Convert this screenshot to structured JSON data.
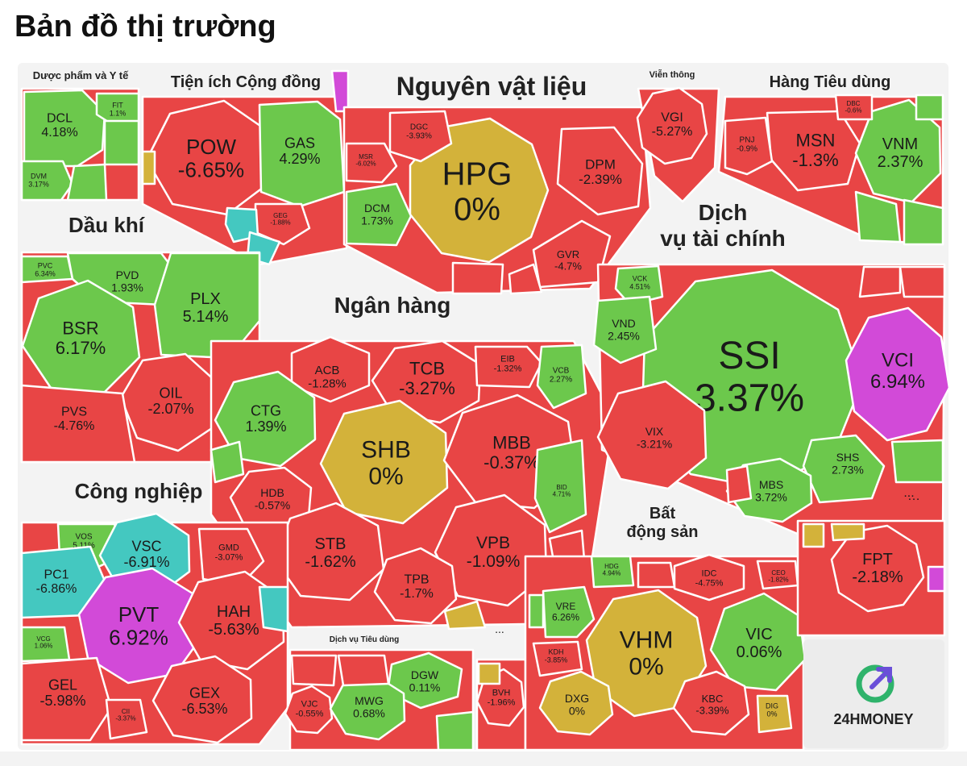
{
  "page_title": "Bản đồ thị trường",
  "logo_text": "24HMONEY",
  "colors": {
    "up": "#6cc84c",
    "down": "#e84545",
    "flat": "#d3b23a",
    "ceiling": "#d24ad8",
    "floor": "#44c8c0",
    "background": "#f3f3f3"
  },
  "chart_data": {
    "type": "heatmap",
    "sectors": [
      {
        "name": "Dược phẩm và Y tế",
        "stocks": [
          {
            "ticker": "DCL",
            "change": "4.18%"
          },
          {
            "ticker": "FIT",
            "change": "1.1%"
          },
          {
            "ticker": "DVM",
            "change": "3.17%"
          }
        ]
      },
      {
        "name": "Tiện ích Cộng đồng",
        "stocks": [
          {
            "ticker": "POW",
            "change": "-6.65%"
          },
          {
            "ticker": "GAS",
            "change": "4.29%"
          },
          {
            "ticker": "GEG",
            "change": "-1.88%"
          }
        ]
      },
      {
        "name": "Nguyên vật liệu",
        "stocks": [
          {
            "ticker": "HPG",
            "change": "0%"
          },
          {
            "ticker": "DGC",
            "change": "-3.93%"
          },
          {
            "ticker": "MSR",
            "change": "-6.02%"
          },
          {
            "ticker": "DPM",
            "change": "-2.39%"
          },
          {
            "ticker": "DCM",
            "change": "1.73%"
          },
          {
            "ticker": "GVR",
            "change": "-4.7%"
          }
        ]
      },
      {
        "name": "Viễn thông",
        "stocks": [
          {
            "ticker": "VGI",
            "change": "-5.27%"
          }
        ]
      },
      {
        "name": "Hàng Tiêu dùng",
        "stocks": [
          {
            "ticker": "MSN",
            "change": "-1.3%"
          },
          {
            "ticker": "VNM",
            "change": "2.37%"
          },
          {
            "ticker": "PNJ",
            "change": "-0.9%"
          },
          {
            "ticker": "DBC",
            "change": "-0.6%"
          }
        ]
      },
      {
        "name": "Dầu khí",
        "stocks": [
          {
            "ticker": "PVC",
            "change": "6.34%"
          },
          {
            "ticker": "PVD",
            "change": "1.93%"
          },
          {
            "ticker": "BSR",
            "change": "6.17%"
          },
          {
            "ticker": "PLX",
            "change": "5.14%"
          },
          {
            "ticker": "OIL",
            "change": "-2.07%"
          },
          {
            "ticker": "PVS",
            "change": "-4.76%"
          }
        ]
      },
      {
        "name": "Ngân hàng",
        "stocks": [
          {
            "ticker": "ACB",
            "change": "-1.28%"
          },
          {
            "ticker": "TCB",
            "change": "-3.27%"
          },
          {
            "ticker": "EIB",
            "change": "-1.32%"
          },
          {
            "ticker": "VCB",
            "change": "2.27%"
          },
          {
            "ticker": "CTG",
            "change": "1.39%"
          },
          {
            "ticker": "SHB",
            "change": "0%"
          },
          {
            "ticker": "MBB",
            "change": "-0.37%"
          },
          {
            "ticker": "BID",
            "change": "4.71%"
          },
          {
            "ticker": "HDB",
            "change": "-0.57%"
          },
          {
            "ticker": "STB",
            "change": "-1.62%"
          },
          {
            "ticker": "VPB",
            "change": "-1.09%"
          },
          {
            "ticker": "TPB",
            "change": "-1.7%"
          }
        ]
      },
      {
        "name": "Dịch vụ tài chính",
        "stocks": [
          {
            "ticker": "SSI",
            "change": "3.37%"
          },
          {
            "ticker": "VCI",
            "change": "6.94%"
          },
          {
            "ticker": "VCK",
            "change": "4.51%"
          },
          {
            "ticker": "VND",
            "change": "2.45%"
          },
          {
            "ticker": "VIX",
            "change": "-3.21%"
          },
          {
            "ticker": "SHS",
            "change": "2.73%"
          },
          {
            "ticker": "MBS",
            "change": "3.72%"
          }
        ]
      },
      {
        "name": "Công nghiệp",
        "stocks": [
          {
            "ticker": "VOS",
            "change": "5.11%"
          },
          {
            "ticker": "VSC",
            "change": "-6.91%"
          },
          {
            "ticker": "GMD",
            "change": "-3.07%"
          },
          {
            "ticker": "PC1",
            "change": "-6.86%"
          },
          {
            "ticker": "PVT",
            "change": "6.92%"
          },
          {
            "ticker": "HAH",
            "change": "-5.63%"
          },
          {
            "ticker": "VCG",
            "change": "1.06%"
          },
          {
            "ticker": "GEL",
            "change": "-5.98%"
          },
          {
            "ticker": "CII",
            "change": "-3.37%"
          },
          {
            "ticker": "GEX",
            "change": "-6.53%"
          }
        ]
      },
      {
        "name": "Dịch vụ Tiêu dùng",
        "stocks": [
          {
            "ticker": "DGW",
            "change": "0.11%"
          },
          {
            "ticker": "VJC",
            "change": "-0.55%"
          },
          {
            "ticker": "MWG",
            "change": "0.68%"
          }
        ]
      },
      {
        "name": "...",
        "stocks": [
          {
            "ticker": "BVH",
            "change": "-1.96%"
          }
        ]
      },
      {
        "name": "Bất động sản",
        "stocks": [
          {
            "ticker": "HDG",
            "change": "4.94%"
          },
          {
            "ticker": "IDC",
            "change": "-4.75%"
          },
          {
            "ticker": "CEO",
            "change": "-1.82%"
          },
          {
            "ticker": "VRE",
            "change": "6.26%"
          },
          {
            "ticker": "VHM",
            "change": "0%"
          },
          {
            "ticker": "VIC",
            "change": "0.06%"
          },
          {
            "ticker": "KDH",
            "change": "-3.85%"
          },
          {
            "ticker": "DXG",
            "change": "0%"
          },
          {
            "ticker": "KBC",
            "change": "-3.39%"
          },
          {
            "ticker": "DIG",
            "change": "0%"
          }
        ]
      },
      {
        "name": "...",
        "stocks": [
          {
            "ticker": "FPT",
            "change": "-2.18%"
          }
        ]
      }
    ]
  }
}
